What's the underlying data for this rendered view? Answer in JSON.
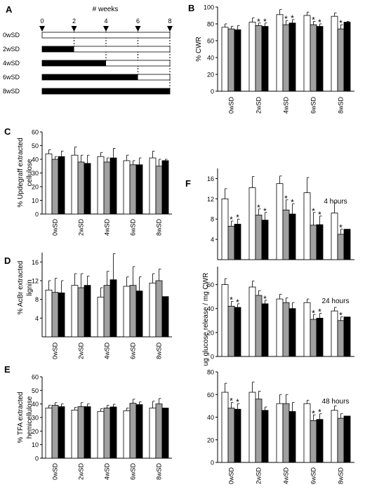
{
  "panel_a": {
    "letter": "A",
    "axis_label": "# weeks",
    "ticks": [
      0,
      2,
      4,
      6,
      8
    ],
    "rows": [
      {
        "label": "0wSD",
        "filled_weeks": 0
      },
      {
        "label": "2wSD",
        "filled_weeks": 2
      },
      {
        "label": "4wSD",
        "filled_weeks": 4
      },
      {
        "label": "6wSD",
        "filled_weeks": 6
      },
      {
        "label": "8wSD",
        "filled_weeks": 8
      }
    ]
  },
  "colors": {
    "series": [
      "#ffffff",
      "#a0a0a0",
      "#000000"
    ],
    "axis": "#000000"
  },
  "chart_data": [
    {
      "id": "B",
      "letter": "B",
      "type": "bar",
      "categories": [
        "0wSD",
        "2wSD",
        "4wSD",
        "6wSD",
        "8wSD"
      ],
      "ylabel": "% CWR",
      "ylim": [
        0,
        100
      ],
      "yticks": [
        0,
        20,
        40,
        60,
        80,
        100
      ],
      "series": [
        {
          "values": [
            76,
            82,
            91,
            90,
            89
          ],
          "errors": [
            4,
            5,
            6,
            4,
            4
          ]
        },
        {
          "values": [
            74,
            78,
            79,
            79,
            74
          ],
          "errors": [
            3,
            3,
            5,
            4,
            5
          ]
        },
        {
          "values": [
            73,
            77,
            81,
            77,
            82
          ],
          "errors": [
            5,
            4,
            4,
            3,
            1
          ]
        }
      ],
      "annotations": [
        {
          "category": 1,
          "series": 1,
          "text": "*"
        },
        {
          "category": 1,
          "series": 2,
          "text": "*"
        },
        {
          "category": 2,
          "series": 1,
          "text": "*"
        },
        {
          "category": 2,
          "series": 2,
          "text": "*"
        },
        {
          "category": 3,
          "series": 1,
          "text": "*"
        },
        {
          "category": 3,
          "series": 2,
          "text": "*"
        },
        {
          "category": 4,
          "series": 1,
          "text": "*"
        }
      ]
    },
    {
      "id": "C",
      "letter": "C",
      "type": "bar",
      "categories": [
        "0wSD",
        "2wSD",
        "4wSD",
        "6wSD",
        "8wSD"
      ],
      "ylabel": "% Updegraff extracted cellulose",
      "ylim": [
        0,
        60
      ],
      "yticks": [
        0,
        10,
        20,
        30,
        40,
        50,
        60
      ],
      "series": [
        {
          "values": [
            44,
            43,
            42,
            39,
            41
          ],
          "errors": [
            3,
            6,
            3,
            4,
            5
          ]
        },
        {
          "values": [
            40,
            38,
            38,
            36,
            35
          ],
          "errors": [
            2,
            5,
            3,
            3,
            5
          ]
        },
        {
          "values": [
            42,
            37,
            41,
            36,
            39
          ],
          "errors": [
            4,
            6,
            7,
            5,
            1
          ]
        }
      ],
      "annotations": []
    },
    {
      "id": "D",
      "letter": "D",
      "type": "bar",
      "categories": [
        "0wSD",
        "2wSD",
        "4wSD",
        "6wSD",
        "8wSD"
      ],
      "ylabel": "% AcBr extracted lignin",
      "ylim": [
        0,
        18
      ],
      "yticks": [
        4,
        8,
        12,
        16
      ],
      "series": [
        {
          "values": [
            10,
            11,
            8.5,
            10.8,
            11.5
          ],
          "errors": [
            2,
            2.5,
            2,
            2,
            2
          ]
        },
        {
          "values": [
            9.5,
            10.5,
            11,
            11,
            12
          ],
          "errors": [
            3,
            3,
            3,
            4,
            2.5
          ]
        },
        {
          "values": [
            9.4,
            11,
            12.2,
            9.8,
            8.6
          ],
          "errors": [
            2.6,
            2,
            5.6,
            3,
            0
          ]
        }
      ],
      "annotations": []
    },
    {
      "id": "E",
      "letter": "E",
      "type": "bar",
      "categories": [
        "0wSD",
        "2wSD",
        "4wSD",
        "6wSD",
        "8wSD"
      ],
      "ylabel": "% TFA extracted hemicellulose",
      "ylim": [
        0,
        60
      ],
      "yticks": [
        0,
        10,
        20,
        30,
        40,
        50,
        60
      ],
      "series": [
        {
          "values": [
            37,
            35.5,
            34.5,
            35,
            37
          ],
          "errors": [
            2,
            2,
            2,
            2,
            5
          ]
        },
        {
          "values": [
            39,
            38,
            37,
            40.5,
            40
          ],
          "errors": [
            2,
            3,
            2,
            3,
            4
          ]
        },
        {
          "values": [
            38,
            38,
            37.8,
            39.5,
            37
          ],
          "errors": [
            2,
            2,
            2,
            2,
            0
          ]
        }
      ],
      "annotations": []
    },
    {
      "id": "F1",
      "letter": "F",
      "type": "bar",
      "title": "4 hours",
      "categories": [
        "0wSD",
        "2wSD",
        "4wSD",
        "6wSD",
        "8wSD"
      ],
      "ylim": [
        0,
        18
      ],
      "yticks": [
        4,
        8,
        12,
        16
      ],
      "series": [
        {
          "values": [
            12,
            14.2,
            15,
            13.2,
            9.2
          ],
          "errors": [
            2,
            2.2,
            1.5,
            3,
            2
          ]
        },
        {
          "values": [
            6.6,
            8.8,
            9.8,
            6.8,
            5
          ],
          "errors": [
            1,
            1.2,
            2,
            2.5,
            1
          ]
        },
        {
          "values": [
            7,
            7.8,
            9,
            6.9,
            6
          ],
          "errors": [
            1,
            1.5,
            2,
            1.7,
            0
          ]
        }
      ],
      "annotations": [
        {
          "category": 0,
          "series": 1,
          "text": "*"
        },
        {
          "category": 0,
          "series": 2,
          "text": "*"
        },
        {
          "category": 1,
          "series": 1,
          "text": "*"
        },
        {
          "category": 1,
          "series": 2,
          "text": "*"
        },
        {
          "category": 2,
          "series": 1,
          "text": "*"
        },
        {
          "category": 2,
          "series": 2,
          "text": "*"
        },
        {
          "category": 3,
          "series": 1,
          "text": "*"
        },
        {
          "category": 3,
          "series": 2,
          "text": "*"
        },
        {
          "category": 4,
          "series": 1,
          "text": "*"
        }
      ]
    },
    {
      "id": "F2",
      "type": "bar",
      "title": "24 hours",
      "categories": [
        "0wSD",
        "2wSD",
        "4wSD",
        "6wSD",
        "8wSD"
      ],
      "ylabel": "ug glucose release / mg CWR",
      "ylim": [
        0,
        75
      ],
      "yticks": [
        0,
        20,
        40,
        60
      ],
      "series": [
        {
          "values": [
            60,
            58,
            48,
            45,
            38
          ],
          "errors": [
            5,
            5,
            4,
            3,
            3
          ]
        },
        {
          "values": [
            42,
            51,
            45,
            31,
            30
          ],
          "errors": [
            4,
            4,
            4,
            4,
            3
          ]
        },
        {
          "values": [
            41,
            44,
            40,
            32,
            33
          ],
          "errors": [
            3,
            3,
            5,
            4,
            0
          ]
        }
      ],
      "annotations": [
        {
          "category": 0,
          "series": 1,
          "text": "*"
        },
        {
          "category": 0,
          "series": 2,
          "text": "*"
        },
        {
          "category": 1,
          "series": 2,
          "text": "*"
        },
        {
          "category": 3,
          "series": 1,
          "text": "*"
        },
        {
          "category": 3,
          "series": 2,
          "text": "*"
        },
        {
          "category": 4,
          "series": 1,
          "text": "*"
        }
      ]
    },
    {
      "id": "F3",
      "type": "bar",
      "title": "48 hours",
      "categories": [
        "0wSD",
        "2wSD",
        "4wSD",
        "6wSD",
        "8wSD"
      ],
      "ylim": [
        0,
        80
      ],
      "yticks": [
        0,
        20,
        40,
        60,
        80
      ],
      "series": [
        {
          "values": [
            62,
            62,
            52,
            52,
            46
          ],
          "errors": [
            8,
            9,
            8,
            3,
            4
          ]
        },
        {
          "values": [
            48,
            56,
            52,
            37,
            39
          ],
          "errors": [
            5,
            7,
            8,
            5,
            4
          ]
        },
        {
          "values": [
            47,
            46,
            45,
            38,
            41
          ],
          "errors": [
            5,
            3,
            8,
            5,
            0
          ]
        }
      ],
      "annotations": [
        {
          "category": 0,
          "series": 1,
          "text": "*"
        },
        {
          "category": 0,
          "series": 2,
          "text": "*"
        },
        {
          "category": 3,
          "series": 1,
          "text": "*"
        },
        {
          "category": 3,
          "series": 2,
          "text": "*"
        }
      ]
    }
  ]
}
